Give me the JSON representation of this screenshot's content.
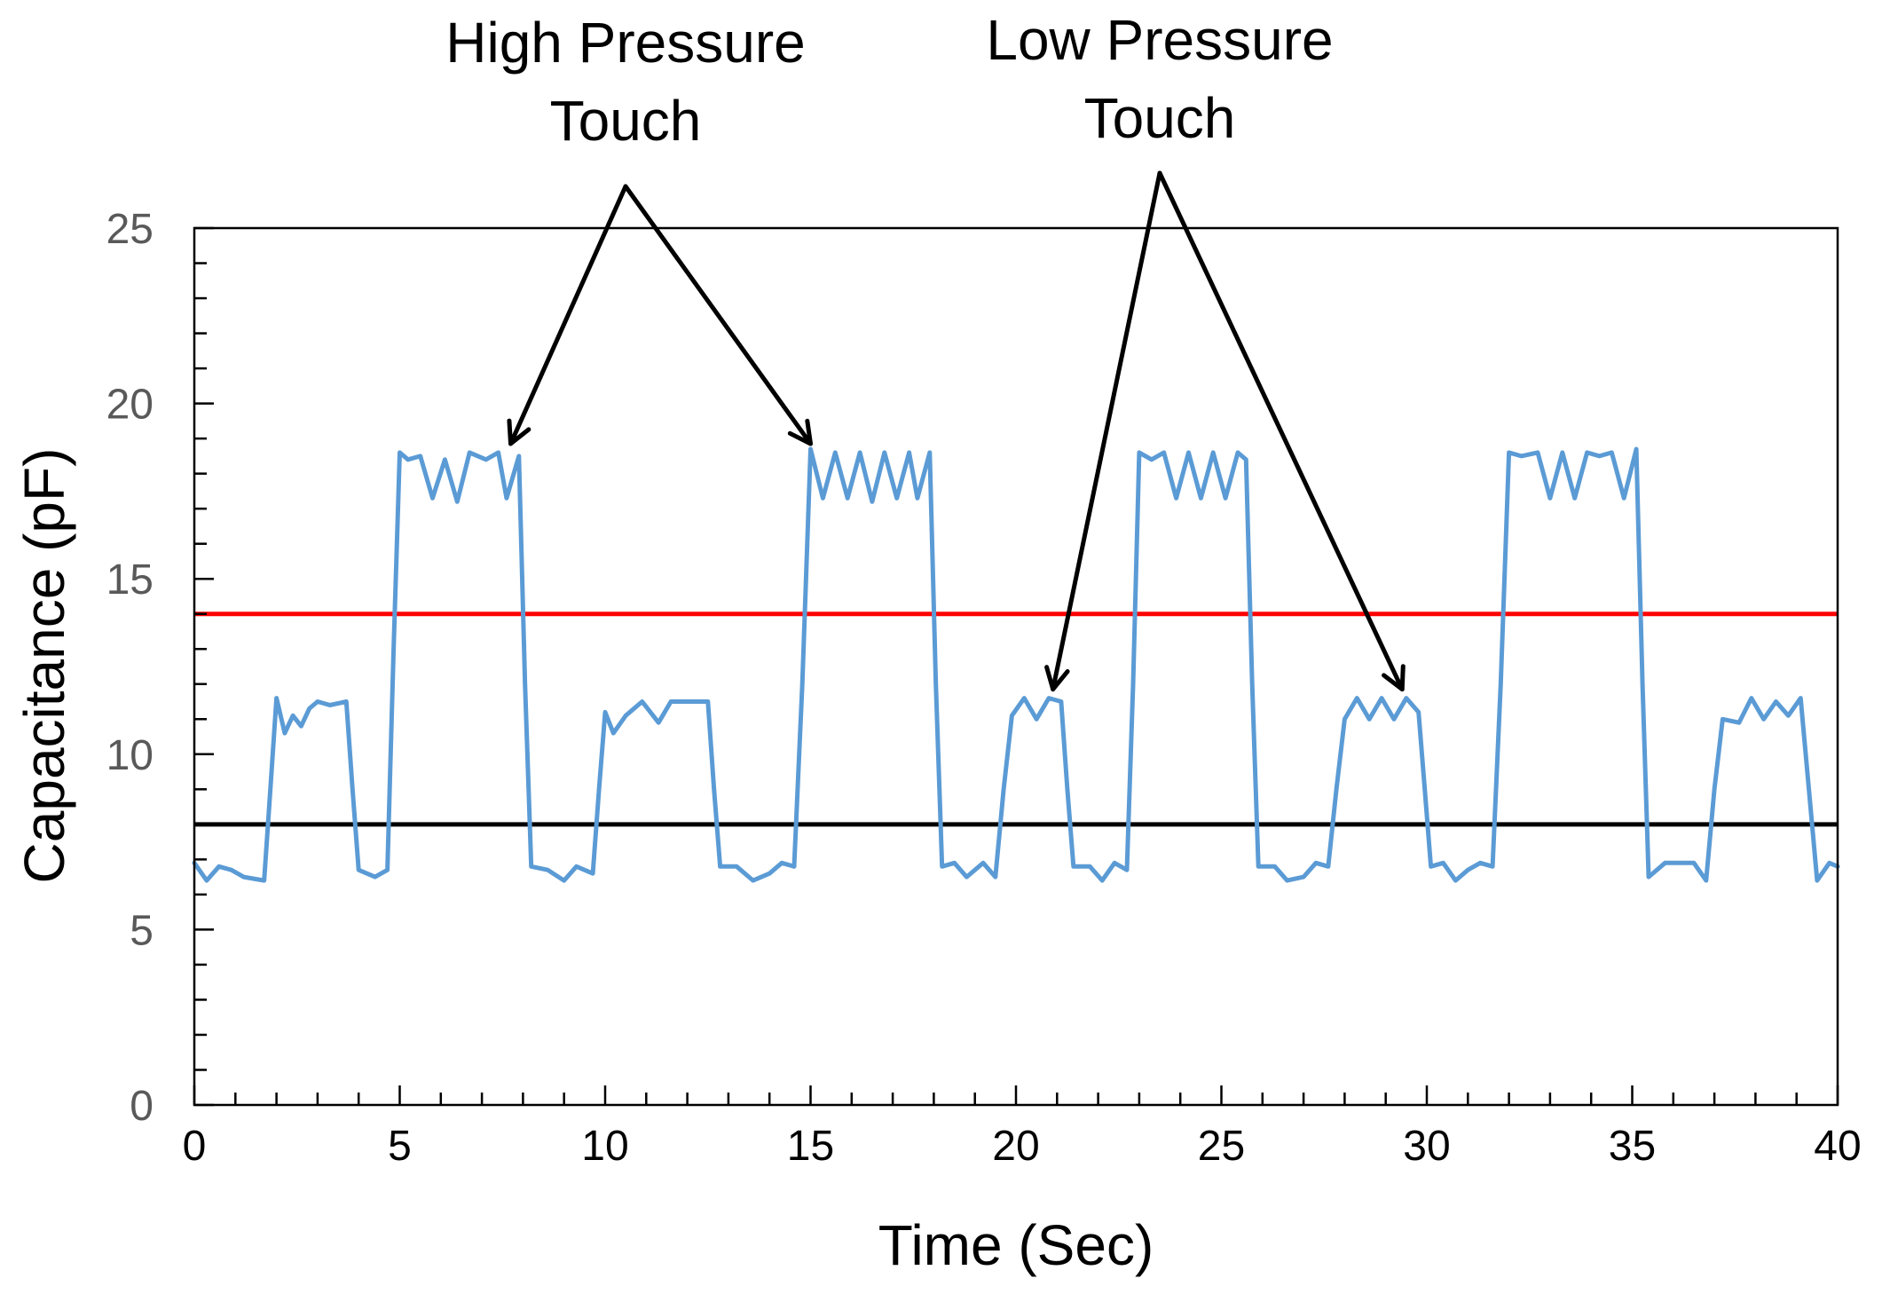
{
  "chart_data": {
    "type": "line",
    "title": "",
    "xlabel": "Time (Sec)",
    "ylabel": "Capacitance (pF)",
    "xlim": [
      0,
      40
    ],
    "ylim": [
      0,
      25
    ],
    "xticks": [
      "0",
      "5",
      "10",
      "15",
      "20",
      "25",
      "30",
      "35",
      "40"
    ],
    "yticks": [
      "0",
      "5",
      "10",
      "15",
      "20",
      "25"
    ],
    "x_minor_step": 1,
    "y_minor_step": 1,
    "grid": false,
    "colors": {
      "series": "#5b9bd5",
      "upper_threshold": "#ff0000",
      "lower_threshold": "#000000",
      "annotation": "#000000"
    },
    "thresholds": [
      {
        "name": "upper threshold",
        "y": 14.0
      },
      {
        "name": "lower threshold",
        "y": 8.0
      }
    ],
    "series": [
      {
        "name": "Capacitance",
        "points": [
          [
            0.0,
            6.9
          ],
          [
            0.3,
            6.4
          ],
          [
            0.6,
            6.8
          ],
          [
            0.9,
            6.7
          ],
          [
            1.2,
            6.5
          ],
          [
            1.7,
            6.4
          ],
          [
            1.85,
            9.0
          ],
          [
            2.0,
            11.6
          ],
          [
            2.2,
            10.6
          ],
          [
            2.4,
            11.1
          ],
          [
            2.6,
            10.8
          ],
          [
            2.8,
            11.3
          ],
          [
            3.0,
            11.5
          ],
          [
            3.3,
            11.4
          ],
          [
            3.7,
            11.5
          ],
          [
            3.85,
            9.0
          ],
          [
            4.0,
            6.7
          ],
          [
            4.4,
            6.5
          ],
          [
            4.7,
            6.7
          ],
          [
            4.85,
            13.0
          ],
          [
            5.0,
            18.6
          ],
          [
            5.2,
            18.4
          ],
          [
            5.5,
            18.5
          ],
          [
            5.8,
            17.3
          ],
          [
            6.1,
            18.4
          ],
          [
            6.4,
            17.2
          ],
          [
            6.7,
            18.6
          ],
          [
            7.1,
            18.4
          ],
          [
            7.4,
            18.6
          ],
          [
            7.6,
            17.3
          ],
          [
            7.9,
            18.5
          ],
          [
            8.05,
            12.0
          ],
          [
            8.2,
            6.8
          ],
          [
            8.6,
            6.7
          ],
          [
            9.0,
            6.4
          ],
          [
            9.3,
            6.8
          ],
          [
            9.7,
            6.6
          ],
          [
            9.85,
            9.0
          ],
          [
            10.0,
            11.2
          ],
          [
            10.2,
            10.6
          ],
          [
            10.5,
            11.1
          ],
          [
            10.9,
            11.5
          ],
          [
            11.3,
            10.9
          ],
          [
            11.6,
            11.5
          ],
          [
            12.1,
            11.5
          ],
          [
            12.5,
            11.5
          ],
          [
            12.65,
            9.0
          ],
          [
            12.8,
            6.8
          ],
          [
            13.2,
            6.8
          ],
          [
            13.6,
            6.4
          ],
          [
            14.0,
            6.6
          ],
          [
            14.3,
            6.9
          ],
          [
            14.6,
            6.8
          ],
          [
            14.8,
            12.0
          ],
          [
            15.0,
            18.7
          ],
          [
            15.3,
            17.3
          ],
          [
            15.6,
            18.6
          ],
          [
            15.9,
            17.3
          ],
          [
            16.2,
            18.6
          ],
          [
            16.5,
            17.2
          ],
          [
            16.8,
            18.6
          ],
          [
            17.1,
            17.3
          ],
          [
            17.4,
            18.6
          ],
          [
            17.6,
            17.3
          ],
          [
            17.9,
            18.6
          ],
          [
            18.05,
            12.0
          ],
          [
            18.2,
            6.8
          ],
          [
            18.5,
            6.9
          ],
          [
            18.8,
            6.5
          ],
          [
            19.2,
            6.9
          ],
          [
            19.5,
            6.5
          ],
          [
            19.7,
            9.0
          ],
          [
            19.9,
            11.1
          ],
          [
            20.2,
            11.6
          ],
          [
            20.5,
            11.0
          ],
          [
            20.8,
            11.6
          ],
          [
            21.1,
            11.5
          ],
          [
            21.25,
            9.0
          ],
          [
            21.4,
            6.8
          ],
          [
            21.8,
            6.8
          ],
          [
            22.1,
            6.4
          ],
          [
            22.4,
            6.9
          ],
          [
            22.7,
            6.7
          ],
          [
            22.85,
            12.0
          ],
          [
            23.0,
            18.6
          ],
          [
            23.3,
            18.4
          ],
          [
            23.6,
            18.6
          ],
          [
            23.9,
            17.3
          ],
          [
            24.2,
            18.6
          ],
          [
            24.5,
            17.3
          ],
          [
            24.8,
            18.6
          ],
          [
            25.1,
            17.3
          ],
          [
            25.4,
            18.6
          ],
          [
            25.6,
            18.4
          ],
          [
            25.75,
            12.0
          ],
          [
            25.9,
            6.8
          ],
          [
            26.3,
            6.8
          ],
          [
            26.6,
            6.4
          ],
          [
            27.0,
            6.5
          ],
          [
            27.3,
            6.9
          ],
          [
            27.6,
            6.8
          ],
          [
            27.8,
            9.0
          ],
          [
            28.0,
            11.0
          ],
          [
            28.3,
            11.6
          ],
          [
            28.6,
            11.0
          ],
          [
            28.9,
            11.6
          ],
          [
            29.2,
            11.0
          ],
          [
            29.5,
            11.6
          ],
          [
            29.8,
            11.2
          ],
          [
            29.95,
            9.0
          ],
          [
            30.1,
            6.8
          ],
          [
            30.4,
            6.9
          ],
          [
            30.7,
            6.4
          ],
          [
            31.0,
            6.7
          ],
          [
            31.3,
            6.9
          ],
          [
            31.6,
            6.8
          ],
          [
            31.8,
            12.0
          ],
          [
            32.0,
            18.6
          ],
          [
            32.3,
            18.5
          ],
          [
            32.7,
            18.6
          ],
          [
            33.0,
            17.3
          ],
          [
            33.3,
            18.6
          ],
          [
            33.6,
            17.3
          ],
          [
            33.9,
            18.6
          ],
          [
            34.2,
            18.5
          ],
          [
            34.5,
            18.6
          ],
          [
            34.8,
            17.3
          ],
          [
            35.1,
            18.7
          ],
          [
            35.25,
            12.0
          ],
          [
            35.4,
            6.5
          ],
          [
            35.8,
            6.9
          ],
          [
            36.2,
            6.9
          ],
          [
            36.5,
            6.9
          ],
          [
            36.8,
            6.4
          ],
          [
            37.0,
            9.0
          ],
          [
            37.2,
            11.0
          ],
          [
            37.6,
            10.9
          ],
          [
            37.9,
            11.6
          ],
          [
            38.2,
            11.0
          ],
          [
            38.5,
            11.5
          ],
          [
            38.8,
            11.1
          ],
          [
            39.1,
            11.6
          ],
          [
            39.3,
            9.0
          ],
          [
            39.5,
            6.4
          ],
          [
            39.8,
            6.9
          ],
          [
            40.0,
            6.8
          ]
        ]
      }
    ],
    "annotations": [
      {
        "label": "High Pressure Touch",
        "lines": [
          "High Pressure",
          "Touch"
        ],
        "points_to": [
          [
            7.7,
            18.7
          ],
          [
            15.0,
            18.7
          ]
        ]
      },
      {
        "label": "Low Pressure Touch",
        "lines": [
          "Low Pressure",
          "Touch"
        ],
        "points_to": [
          [
            20.9,
            11.7
          ],
          [
            29.4,
            11.7
          ]
        ]
      }
    ]
  }
}
